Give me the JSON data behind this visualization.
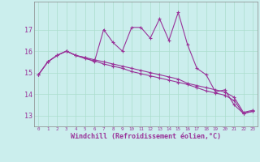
{
  "xlabel": "Windchill (Refroidissement éolien,°C)",
  "background_color": "#cbeeed",
  "grid_color": "#aaddcc",
  "line_color": "#993399",
  "hours": [
    0,
    1,
    2,
    3,
    4,
    5,
    6,
    7,
    8,
    9,
    10,
    11,
    12,
    13,
    14,
    15,
    16,
    17,
    18,
    19,
    20,
    21,
    22,
    23
  ],
  "line1": [
    14.9,
    15.5,
    15.8,
    16.0,
    15.8,
    15.7,
    15.5,
    17.0,
    16.4,
    16.0,
    17.1,
    17.1,
    16.6,
    17.5,
    16.5,
    17.8,
    16.3,
    15.2,
    14.9,
    14.1,
    14.2,
    13.5,
    13.1,
    13.2
  ],
  "line2": [
    14.9,
    15.5,
    15.8,
    16.0,
    15.8,
    15.7,
    15.6,
    15.5,
    15.4,
    15.3,
    15.2,
    15.1,
    15.0,
    14.9,
    14.8,
    14.7,
    14.5,
    14.4,
    14.3,
    14.2,
    14.1,
    13.85,
    13.15,
    13.25
  ],
  "line3": [
    14.9,
    15.5,
    15.8,
    16.0,
    15.8,
    15.65,
    15.55,
    15.4,
    15.3,
    15.2,
    15.05,
    14.95,
    14.85,
    14.75,
    14.65,
    14.55,
    14.45,
    14.3,
    14.15,
    14.05,
    13.95,
    13.7,
    13.1,
    13.2
  ],
  "ylim": [
    12.5,
    18.3
  ],
  "yticks": [
    13,
    14,
    15,
    16,
    17
  ],
  "xlim": [
    -0.5,
    23.5
  ]
}
